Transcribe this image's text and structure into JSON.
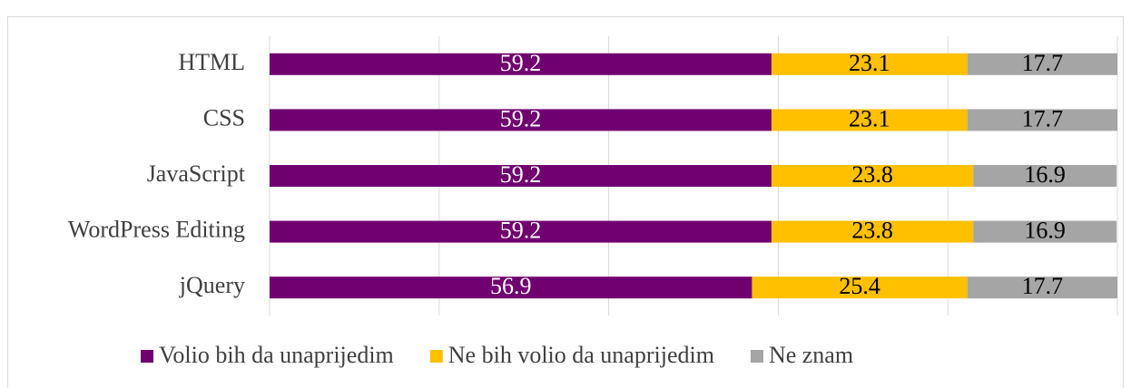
{
  "chart_data": {
    "type": "stacked_barh",
    "categories": [
      "HTML",
      "CSS",
      "JavaScript",
      "WordPress Editing",
      "jQuery"
    ],
    "series": [
      {
        "name": "Volio bih da unaprijedim",
        "color": "#700070",
        "label_color": "#ffffff",
        "values": [
          59.2,
          59.2,
          59.2,
          59.2,
          56.9
        ]
      },
      {
        "name": "Ne bih volio da unaprijedim",
        "color": "#ffc000",
        "label_color": "#000000",
        "values": [
          23.1,
          23.1,
          23.8,
          23.8,
          25.4
        ]
      },
      {
        "name": "Ne znam",
        "color": "#a5a5a5",
        "label_color": "#000000",
        "values": [
          17.7,
          17.7,
          16.9,
          16.9,
          17.7
        ]
      }
    ],
    "xlim": [
      0,
      100
    ],
    "xticks": [
      0,
      20,
      40,
      60,
      80,
      100
    ],
    "grid": true,
    "legend": "bottom"
  }
}
